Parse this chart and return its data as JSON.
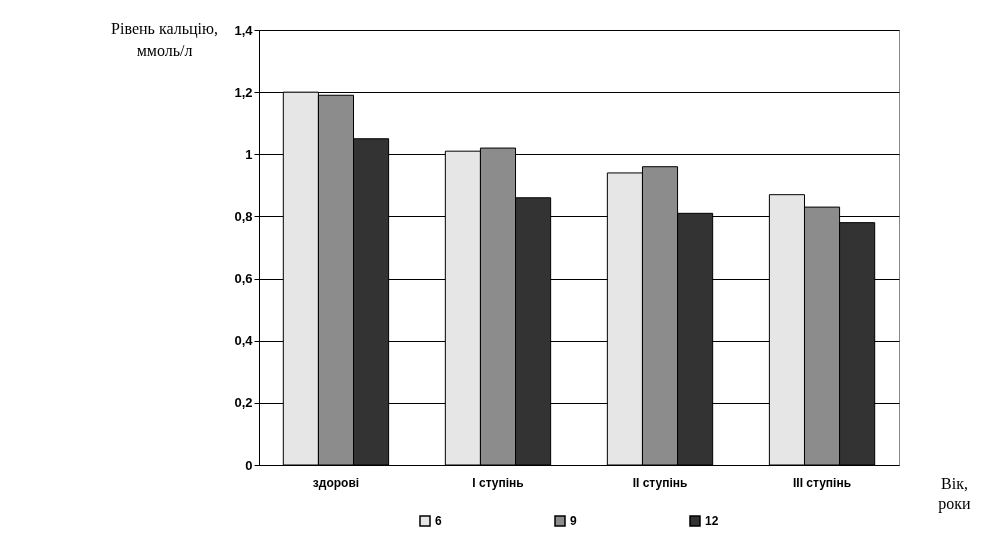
{
  "chart_data": {
    "type": "bar",
    "categories": [
      "здорові",
      "І ступінь",
      "ІІ ступінь",
      "ІІІ ступінь"
    ],
    "series": [
      {
        "name": "6",
        "color": "#e6e6e6",
        "values": [
          1.2,
          1.01,
          0.94,
          0.87
        ]
      },
      {
        "name": "9",
        "color": "#8c8c8c",
        "values": [
          1.19,
          1.02,
          0.96,
          0.83
        ]
      },
      {
        "name": "12",
        "color": "#333333",
        "values": [
          1.05,
          0.86,
          0.81,
          0.78
        ]
      }
    ],
    "ylabel": "Рівень кальцію, ммоль/л",
    "xlabel": "Вік, роки",
    "ylim": [
      0,
      1.4
    ],
    "yticks": [
      0,
      {
        "value": 0.2,
        "label": "0,2"
      },
      {
        "value": 0.4,
        "label": "0,4"
      },
      {
        "value": 0.6,
        "label": "0,6"
      },
      {
        "value": 0.8,
        "label": "0,8"
      },
      1,
      {
        "value": 1.2,
        "label": "1,2"
      },
      {
        "value": 1.4,
        "label": "1,4"
      }
    ],
    "grid": "y",
    "legend": "bottom"
  }
}
